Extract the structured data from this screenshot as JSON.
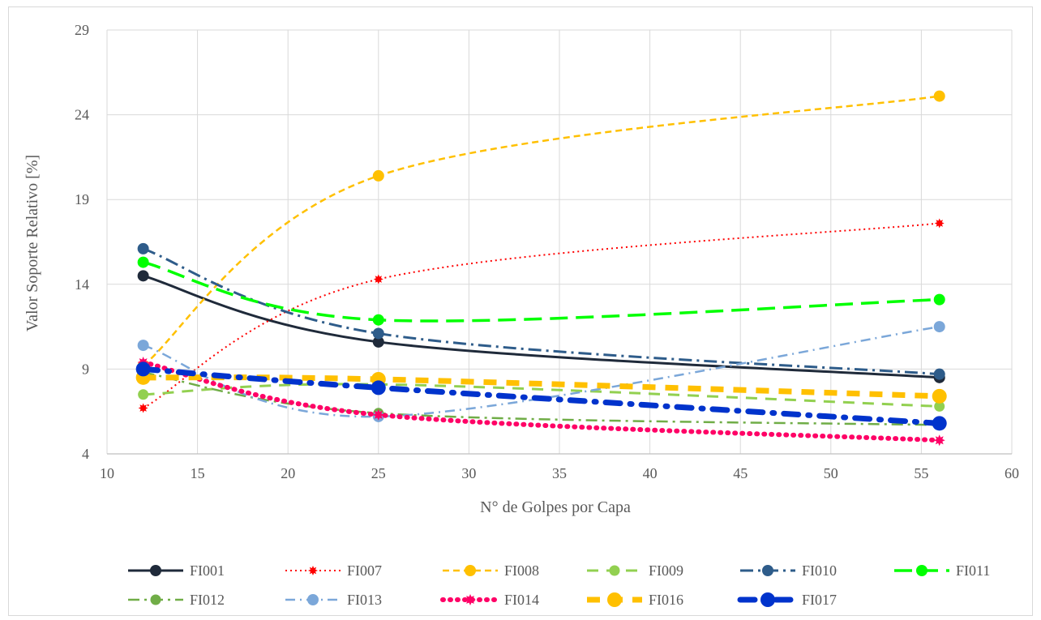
{
  "chart_data": {
    "type": "line",
    "xlabel": "N° de Golpes por Capa",
    "ylabel": "Valor Soporte Relativo [%]",
    "xlim": [
      10,
      60
    ],
    "ylim": [
      4,
      29
    ],
    "xticks": [
      10,
      15,
      20,
      25,
      30,
      35,
      40,
      45,
      50,
      55,
      60
    ],
    "yticks": [
      4,
      9,
      14,
      19,
      24,
      29
    ],
    "grid": true,
    "legend_position": "bottom",
    "x": [
      12,
      25,
      56
    ],
    "series": [
      {
        "name": "FI001",
        "values": [
          14.5,
          10.6,
          8.5
        ],
        "color": "#1f2a3a"
      },
      {
        "name": "FI007",
        "values": [
          6.7,
          14.3,
          17.6
        ],
        "color": "#ff0000"
      },
      {
        "name": "FI008",
        "values": [
          9.2,
          20.4,
          25.1
        ],
        "color": "#ffc000"
      },
      {
        "name": "FI009",
        "values": [
          7.5,
          8.1,
          6.8
        ],
        "color": "#92d050"
      },
      {
        "name": "FI010",
        "values": [
          16.1,
          11.1,
          8.7
        ],
        "color": "#2e5c8a"
      },
      {
        "name": "FI011",
        "values": [
          15.3,
          11.9,
          13.1
        ],
        "color": "#00ff00"
      },
      {
        "name": "FI012",
        "values": [
          8.8,
          6.4,
          5.7
        ],
        "color": "#70ad47"
      },
      {
        "name": "FI013",
        "values": [
          10.4,
          6.2,
          11.5
        ],
        "color": "#7ba7d9"
      },
      {
        "name": "FI014",
        "values": [
          9.4,
          6.3,
          4.8
        ],
        "color": "#ff0066"
      },
      {
        "name": "FI016",
        "values": [
          8.5,
          8.4,
          7.4
        ],
        "color": "#ffc000"
      },
      {
        "name": "FI017",
        "values": [
          9.0,
          7.9,
          5.8
        ],
        "color": "#0033cc"
      }
    ]
  }
}
